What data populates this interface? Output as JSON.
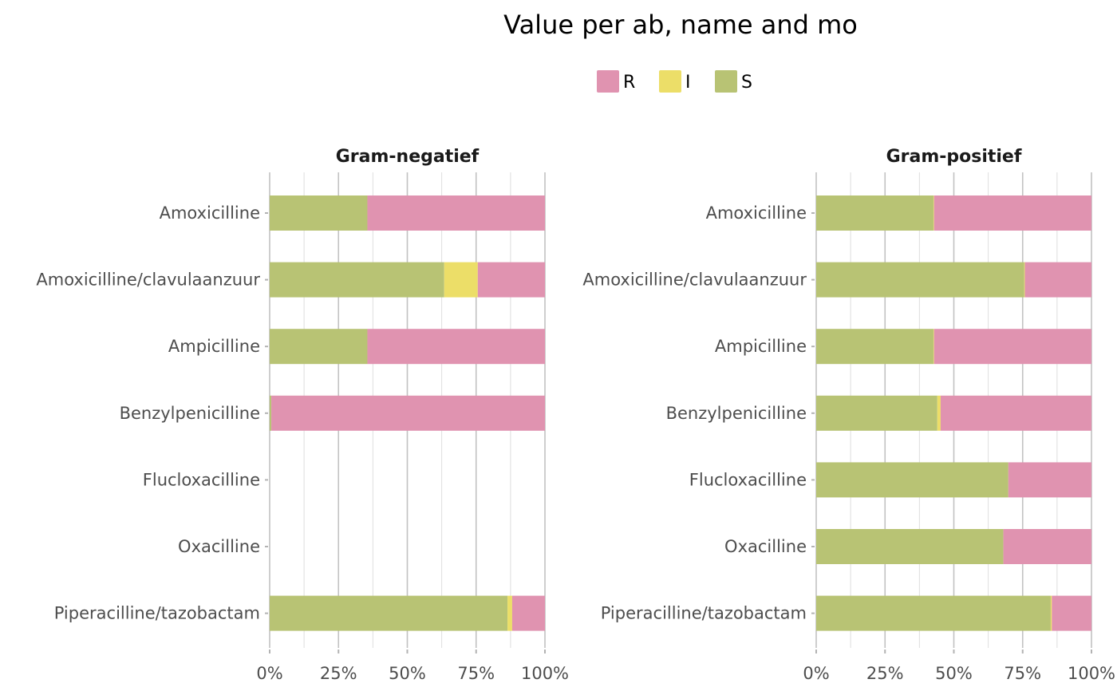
{
  "chart_data": {
    "type": "bar",
    "orientation": "horizontal",
    "stacked": true,
    "title": "Value per ab, name and mo",
    "legend": {
      "placement": "top",
      "entries": [
        {
          "name": "R",
          "color": "#E093B0"
        },
        {
          "name": "I",
          "color": "#ECDE68"
        },
        {
          "name": "S",
          "color": "#B8C374"
        }
      ]
    },
    "stack_order": [
      "S",
      "I",
      "R"
    ],
    "colors": {
      "R": "#E093B0",
      "I": "#ECDE68",
      "S": "#B8C374"
    },
    "categories": [
      "Amoxicilline",
      "Amoxicilline/clavulaanzuur",
      "Ampicilline",
      "Benzylpenicilline",
      "Flucloxacilline",
      "Oxacilline",
      "Piperacilline/tazobactam"
    ],
    "x_ticks": [
      "0%",
      "25%",
      "50%",
      "75%",
      "100%"
    ],
    "xlim": [
      0,
      1
    ],
    "grid": true,
    "panels": [
      {
        "title": "Gram-negatief",
        "series": [
          {
            "name": "S",
            "values": [
              0.355,
              0.634,
              0.355,
              0.006,
              0,
              0,
              0.864
            ]
          },
          {
            "name": "I",
            "values": [
              0,
              0.122,
              0,
              0,
              0,
              0,
              0.017
            ]
          },
          {
            "name": "R",
            "values": [
              0.645,
              0.244,
              0.645,
              0.994,
              0,
              0,
              0.119
            ]
          }
        ]
      },
      {
        "title": "Gram-positief",
        "series": [
          {
            "name": "S",
            "values": [
              0.426,
              0.756,
              0.426,
              0.44,
              0.698,
              0.68,
              0.852
            ]
          },
          {
            "name": "I",
            "values": [
              0.002,
              0.002,
              0.002,
              0.012,
              0,
              0,
              0.004
            ]
          },
          {
            "name": "R",
            "values": [
              0.572,
              0.242,
              0.572,
              0.548,
              0.302,
              0.32,
              0.144
            ]
          }
        ]
      }
    ]
  }
}
